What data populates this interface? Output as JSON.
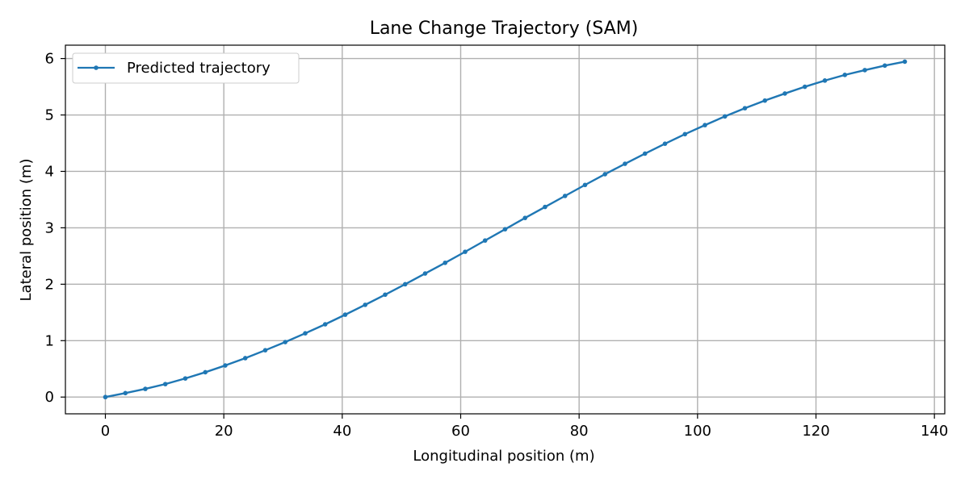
{
  "chart_data": {
    "type": "line",
    "title": "Lane Change Trajectory (SAM)",
    "xlabel": "Longitudinal position (m)",
    "ylabel": "Lateral position (m)",
    "xlim": [
      -6.75,
      141.75
    ],
    "ylim": [
      -0.297,
      6.237
    ],
    "xticks": [
      0,
      20,
      40,
      60,
      80,
      100,
      120,
      140
    ],
    "yticks": [
      0,
      1,
      2,
      3,
      4,
      5,
      6
    ],
    "grid": true,
    "legend_position": "top-left",
    "series": [
      {
        "name": "Predicted trajectory",
        "color": "#1f77b4",
        "marker": "dot",
        "x": [
          0,
          3.375,
          6.75,
          10.125,
          13.5,
          16.875,
          20.25,
          23.625,
          27.0,
          30.375,
          33.75,
          37.125,
          40.5,
          43.875,
          47.25,
          50.625,
          54.0,
          57.375,
          60.75,
          64.125,
          67.5,
          70.875,
          74.25,
          77.625,
          81.0,
          84.375,
          87.75,
          91.125,
          94.5,
          97.875,
          101.25,
          104.625,
          108.0,
          111.375,
          114.75,
          118.125,
          121.5,
          124.875,
          128.25,
          131.625,
          135.0
        ],
        "y": [
          0.0,
          0.07,
          0.145,
          0.23,
          0.33,
          0.44,
          0.56,
          0.69,
          0.83,
          0.975,
          1.13,
          1.29,
          1.46,
          1.635,
          1.815,
          2.0,
          2.19,
          2.38,
          2.575,
          2.775,
          2.975,
          3.175,
          3.37,
          3.565,
          3.76,
          3.95,
          4.135,
          4.315,
          4.49,
          4.66,
          4.82,
          4.975,
          5.12,
          5.255,
          5.38,
          5.5,
          5.61,
          5.71,
          5.795,
          5.875,
          5.945
        ]
      }
    ]
  }
}
